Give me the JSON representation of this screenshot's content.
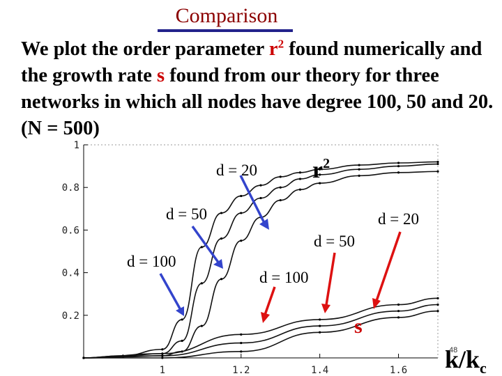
{
  "slide": {
    "title": "Comparison",
    "body_parts": [
      "We plot the order parameter ",
      "r",
      "2",
      " found numerically and the growth rate ",
      "s",
      " found from our theory for three networks in which all nodes have degree 100, 50 and 20.   (N = 500)"
    ],
    "slide_number": "48"
  },
  "annotations": {
    "r2_base": "r",
    "r2_sup": "2",
    "s_label": "s",
    "xaxis_base": "k/k",
    "xaxis_sub": "c",
    "r2_curve_labels": [
      "d = 20",
      "d = 50",
      "d = 100"
    ],
    "s_curve_labels": [
      "d = 20",
      "d = 50",
      "d = 100"
    ]
  },
  "colors": {
    "title": "#8b0000",
    "underline": "#22228b",
    "highlight": "#cc0000",
    "blue_arrow": "#3344cc",
    "red_arrow": "#dd1111"
  },
  "chart_data": {
    "type": "line",
    "xlim": [
      0.8,
      1.7
    ],
    "ylim": [
      0,
      1
    ],
    "x_ticks": [
      1,
      1.2,
      1.4,
      1.6
    ],
    "y_ticks": [
      0.2,
      0.4,
      0.6,
      0.8,
      1
    ],
    "x_tick_labels": [
      "1",
      "1.2",
      "1.4",
      "1.6"
    ],
    "y_tick_labels": [
      "0.2",
      "0.4",
      "0.6",
      "0.8",
      "1"
    ],
    "series": [
      {
        "name": "r2 d = 100",
        "x": [
          0.8,
          0.9,
          1.0,
          1.05,
          1.1,
          1.15,
          1.2,
          1.25,
          1.3,
          1.35,
          1.4,
          1.5,
          1.6,
          1.7
        ],
        "y": [
          0,
          0.01,
          0.04,
          0.18,
          0.52,
          0.68,
          0.76,
          0.81,
          0.85,
          0.87,
          0.885,
          0.905,
          0.915,
          0.92
        ]
      },
      {
        "name": "r2 d = 50",
        "x": [
          0.8,
          0.9,
          1.0,
          1.05,
          1.1,
          1.15,
          1.2,
          1.25,
          1.3,
          1.35,
          1.4,
          1.5,
          1.6,
          1.7
        ],
        "y": [
          0,
          0.01,
          0.02,
          0.08,
          0.35,
          0.56,
          0.68,
          0.75,
          0.8,
          0.84,
          0.86,
          0.885,
          0.9,
          0.91
        ]
      },
      {
        "name": "r2 d = 20",
        "x": [
          0.8,
          0.9,
          1.0,
          1.05,
          1.1,
          1.15,
          1.2,
          1.25,
          1.3,
          1.35,
          1.4,
          1.5,
          1.6,
          1.7
        ],
        "y": [
          0,
          0.005,
          0.01,
          0.03,
          0.15,
          0.37,
          0.55,
          0.66,
          0.74,
          0.79,
          0.82,
          0.855,
          0.87,
          0.875
        ]
      },
      {
        "name": "s d = 100",
        "x": [
          0.8,
          1.0,
          1.2,
          1.4,
          1.6,
          1.7
        ],
        "y": [
          0,
          0.02,
          0.11,
          0.18,
          0.25,
          0.28
        ]
      },
      {
        "name": "s d = 50",
        "x": [
          0.8,
          1.0,
          1.2,
          1.4,
          1.6,
          1.7
        ],
        "y": [
          0,
          0.01,
          0.07,
          0.15,
          0.22,
          0.25
        ]
      },
      {
        "name": "s d = 20",
        "x": [
          0.8,
          1.0,
          1.2,
          1.4,
          1.6,
          1.7
        ],
        "y": [
          0,
          0,
          0.03,
          0.12,
          0.19,
          0.22
        ]
      }
    ]
  }
}
